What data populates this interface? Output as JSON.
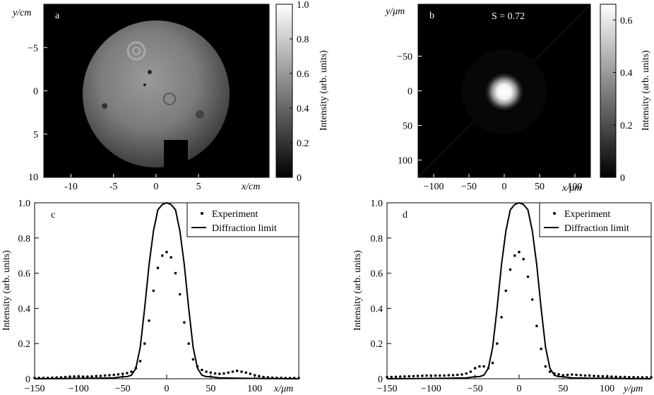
{
  "chart_data": [
    {
      "panel": "a",
      "type": "heatmap",
      "xlabel": "x/cm",
      "ylabel": "y/cm",
      "xticks": [
        -10,
        -5,
        0,
        5
      ],
      "yticks": [
        -5,
        0,
        5,
        10
      ],
      "xlim": [
        -13.2,
        13.3
      ],
      "ylim": [
        10,
        -10
      ],
      "colorbar": {
        "label": "Intensity (arb. units)",
        "ticks": [
          "0",
          "0.2",
          "0.4",
          "0.6",
          "0.8",
          "1.0"
        ],
        "range": [
          0,
          1.0
        ]
      },
      "description_values": {
        "beam_radius_cm": 8.5,
        "center": [
          0,
          0
        ],
        "typical_level": 0.45
      }
    },
    {
      "panel": "b",
      "type": "heatmap",
      "xlabel": "x/μm",
      "ylabel": "y/μm",
      "annotation": "S = 0.72",
      "xticks": [
        -100,
        -50,
        0,
        50,
        100
      ],
      "yticks": [
        -50,
        0,
        50,
        100
      ],
      "xlim": [
        -122,
        122
      ],
      "ylim": [
        125,
        -125
      ],
      "colorbar": {
        "label": "Intensity (arb. units)",
        "ticks": [
          "0",
          "0.2",
          "0.4",
          "0.6"
        ],
        "range": [
          0,
          0.66
        ]
      },
      "description_values": {
        "peak": 0.72,
        "spot_fwhm_um": 22
      }
    },
    {
      "panel": "c",
      "type": "line",
      "xlabel": "x/μm",
      "ylabel": "Intensity (arb. units)",
      "xlim": [
        -150,
        150
      ],
      "ylim": [
        0,
        1.0
      ],
      "xticks": [
        -150,
        -100,
        -50,
        0,
        50,
        100
      ],
      "yticks": [
        "0",
        "0.2",
        "0.4",
        "0.6",
        "0.8",
        "1.0"
      ],
      "legend": {
        "position": "top-right",
        "entries": [
          "Experiment",
          "Diffraction limit"
        ]
      },
      "series": [
        {
          "name": "Experiment",
          "style": "dots",
          "x": [
            -150,
            -145,
            -140,
            -135,
            -130,
            -125,
            -120,
            -115,
            -110,
            -105,
            -100,
            -95,
            -90,
            -85,
            -80,
            -75,
            -70,
            -65,
            -60,
            -55,
            -50,
            -45,
            -40,
            -35,
            -30,
            -25,
            -20,
            -15,
            -10,
            -5,
            0,
            5,
            10,
            15,
            20,
            25,
            30,
            35,
            40,
            45,
            50,
            55,
            60,
            65,
            70,
            75,
            80,
            85,
            90,
            95,
            100,
            105,
            110,
            115,
            120,
            125,
            130,
            135,
            140,
            145,
            150
          ],
          "y": [
            0.005,
            0.005,
            0.005,
            0.005,
            0.006,
            0.007,
            0.008,
            0.01,
            0.012,
            0.013,
            0.013,
            0.012,
            0.012,
            0.013,
            0.015,
            0.016,
            0.018,
            0.02,
            0.022,
            0.025,
            0.028,
            0.032,
            0.04,
            0.06,
            0.1,
            0.2,
            0.33,
            0.5,
            0.63,
            0.7,
            0.72,
            0.69,
            0.6,
            0.48,
            0.32,
            0.2,
            0.11,
            0.07,
            0.05,
            0.04,
            0.035,
            0.03,
            0.028,
            0.03,
            0.035,
            0.04,
            0.045,
            0.04,
            0.035,
            0.028,
            0.02,
            0.015,
            0.01,
            0.008,
            0.006,
            0.005,
            0.005,
            0.004,
            0.004,
            0.004,
            0.004
          ]
        },
        {
          "name": "Diffraction limit",
          "style": "line",
          "x": [
            -150,
            -120,
            -100,
            -80,
            -60,
            -55,
            -50,
            -45,
            -40,
            -35,
            -30,
            -25,
            -20,
            -15,
            -10,
            -5,
            0,
            5,
            10,
            15,
            20,
            25,
            30,
            35,
            40,
            45,
            50,
            55,
            60,
            80,
            100,
            120,
            150
          ],
          "y": [
            0,
            0.001,
            0.002,
            0.003,
            0.005,
            0.008,
            0.012,
            0.012,
            0.02,
            0.06,
            0.18,
            0.4,
            0.65,
            0.84,
            0.96,
            0.99,
            1.0,
            0.99,
            0.96,
            0.84,
            0.65,
            0.4,
            0.18,
            0.06,
            0.02,
            0.012,
            0.012,
            0.008,
            0.005,
            0.003,
            0.002,
            0.001,
            0
          ]
        }
      ]
    },
    {
      "panel": "d",
      "type": "line",
      "xlabel": "y/μm",
      "ylabel": "Intensity (arb. units)",
      "xlim": [
        -150,
        150
      ],
      "ylim": [
        0,
        1.0
      ],
      "xticks": [
        -150,
        -100,
        -50,
        0,
        50,
        100
      ],
      "yticks": [
        "0",
        "0.2",
        "0.4",
        "0.6",
        "0.8",
        "1.0"
      ],
      "legend": {
        "position": "top-right",
        "entries": [
          "Experiment",
          "Diffraction limit"
        ]
      },
      "series": [
        {
          "name": "Experiment",
          "style": "dots",
          "x": [
            -150,
            -145,
            -140,
            -135,
            -130,
            -125,
            -120,
            -115,
            -110,
            -105,
            -100,
            -95,
            -90,
            -85,
            -80,
            -75,
            -70,
            -65,
            -60,
            -55,
            -50,
            -45,
            -40,
            -35,
            -30,
            -25,
            -20,
            -15,
            -10,
            -5,
            0,
            5,
            10,
            15,
            20,
            25,
            30,
            35,
            40,
            45,
            50,
            55,
            60,
            65,
            70,
            75,
            80,
            85,
            90,
            95,
            100,
            105,
            110,
            115,
            120,
            125,
            130,
            135,
            140,
            145,
            150
          ],
          "y": [
            0.01,
            0.01,
            0.011,
            0.012,
            0.013,
            0.014,
            0.015,
            0.016,
            0.017,
            0.018,
            0.018,
            0.018,
            0.018,
            0.018,
            0.02,
            0.02,
            0.022,
            0.024,
            0.03,
            0.04,
            0.06,
            0.07,
            0.07,
            0.06,
            0.09,
            0.2,
            0.35,
            0.5,
            0.62,
            0.7,
            0.72,
            0.68,
            0.58,
            0.45,
            0.3,
            0.17,
            0.07,
            0.04,
            0.03,
            0.025,
            0.02,
            0.022,
            0.024,
            0.022,
            0.02,
            0.018,
            0.018,
            0.016,
            0.015,
            0.014,
            0.013,
            0.012,
            0.011,
            0.01,
            0.01,
            0.009,
            0.009,
            0.008,
            0.008,
            0.008,
            0.008
          ]
        },
        {
          "name": "Diffraction limit",
          "style": "line",
          "x": [
            -150,
            -120,
            -100,
            -80,
            -60,
            -55,
            -50,
            -45,
            -40,
            -35,
            -30,
            -25,
            -20,
            -15,
            -10,
            -5,
            0,
            5,
            10,
            15,
            20,
            25,
            30,
            35,
            40,
            45,
            50,
            55,
            60,
            80,
            100,
            120,
            150
          ],
          "y": [
            0,
            0.001,
            0.002,
            0.003,
            0.005,
            0.008,
            0.012,
            0.012,
            0.02,
            0.06,
            0.18,
            0.4,
            0.65,
            0.84,
            0.96,
            0.99,
            1.0,
            0.99,
            0.96,
            0.84,
            0.65,
            0.4,
            0.18,
            0.06,
            0.02,
            0.012,
            0.012,
            0.008,
            0.005,
            0.003,
            0.002,
            0.001,
            0
          ]
        }
      ]
    }
  ]
}
